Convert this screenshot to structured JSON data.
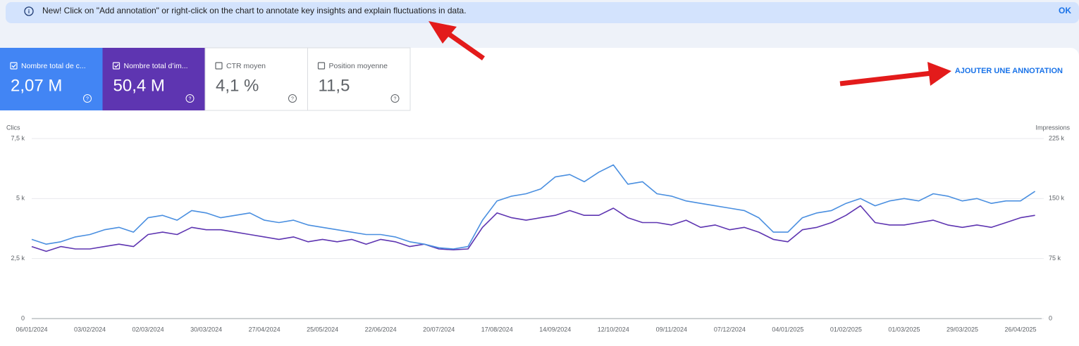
{
  "banner": {
    "text": "New! Click on \"Add annotation\" or right-click on the chart to annotate key insights and explain fluctuations in data.",
    "button": "OK"
  },
  "add_annotation": "AJOUTER UNE ANNOTATION",
  "metrics": [
    {
      "label": "CTR moyen",
      "value": "4,1 %"
    },
    {
      "label": "Position moyenne",
      "value": "11,5"
    }
  ],
  "chart_data": {
    "type": "line",
    "y_label": "Clics",
    "y2_label": "Impressions",
    "grid": true,
    "x": [
      "06/01/2024",
      "13/01/2024",
      "20/01/2024",
      "27/01/2024",
      "03/02/2024",
      "10/02/2024",
      "17/02/2024",
      "24/02/2024",
      "02/03/2024",
      "09/03/2024",
      "16/03/2024",
      "23/03/2024",
      "30/03/2024",
      "06/04/2024",
      "13/04/2024",
      "20/04/2024",
      "27/04/2024",
      "04/05/2024",
      "11/05/2024",
      "18/05/2024",
      "25/05/2024",
      "01/06/2024",
      "08/06/2024",
      "15/06/2024",
      "22/06/2024",
      "29/06/2024",
      "06/07/2024",
      "13/07/2024",
      "20/07/2024",
      "27/07/2024",
      "03/08/2024",
      "10/08/2024",
      "17/08/2024",
      "24/08/2024",
      "31/08/2024",
      "07/09/2024",
      "14/09/2024",
      "21/09/2024",
      "28/09/2024",
      "05/10/2024",
      "12/10/2024",
      "19/10/2024",
      "26/10/2024",
      "02/11/2024",
      "09/11/2024",
      "16/11/2024",
      "23/11/2024",
      "30/11/2024",
      "07/12/2024",
      "14/12/2024",
      "21/12/2024",
      "28/12/2024",
      "04/01/2025",
      "11/01/2025",
      "18/01/2025",
      "25/01/2025",
      "01/02/2025",
      "08/02/2025",
      "15/02/2025",
      "22/02/2025",
      "01/03/2025",
      "08/03/2025",
      "15/03/2025",
      "22/03/2025",
      "29/03/2025",
      "05/04/2025",
      "12/04/2025",
      "19/04/2025",
      "26/04/2025",
      "03/05/2025"
    ],
    "xticks": [
      "06/01/2024",
      "03/02/2024",
      "02/03/2024",
      "30/03/2024",
      "27/04/2024",
      "25/05/2024",
      "22/06/2024",
      "20/07/2024",
      "17/08/2024",
      "14/09/2024",
      "12/10/2024",
      "09/11/2024",
      "07/12/2024",
      "04/01/2025",
      "01/02/2025",
      "01/03/2025",
      "29/03/2025",
      "26/04/2025"
    ],
    "ylim": [
      0,
      7500
    ],
    "yticks": [
      0,
      {
        "value": 2500,
        "label": "2,5 k"
      },
      {
        "value": 5000,
        "label": "5 k"
      },
      {
        "value": 7500,
        "label": "7,5 k"
      }
    ],
    "y2lim": [
      0,
      225000
    ],
    "y2ticks": [
      0,
      {
        "value": 75000,
        "label": "75 k"
      },
      {
        "value": 150000,
        "label": "150 k"
      },
      {
        "value": 225000,
        "label": "225 k"
      }
    ],
    "series": [
      {
        "name": "Nombre total de c...",
        "total": "2,07 M",
        "color": "#4a8fe0",
        "card_color": "#4285f4",
        "values": [
          3300,
          3100,
          3200,
          3400,
          3500,
          3700,
          3800,
          3600,
          4200,
          4300,
          4100,
          4500,
          4400,
          4200,
          4300,
          4400,
          4100,
          4000,
          4100,
          3900,
          3800,
          3700,
          3600,
          3500,
          3500,
          3400,
          3200,
          3100,
          2950,
          2900,
          3000,
          4100,
          4900,
          5100,
          5200,
          5400,
          5900,
          6000,
          5700,
          6100,
          6400,
          5600,
          5700,
          5200,
          5100,
          4900,
          4800,
          4700,
          4600,
          4500,
          4200,
          3600,
          3600,
          4200,
          4400,
          4500,
          4800,
          5000,
          4700,
          4900,
          5000,
          4900,
          5200,
          5100,
          4900,
          5000,
          4800,
          4900,
          4900,
          5300
        ]
      },
      {
        "name": "Nombre total d’im...",
        "total": "50,4 M",
        "color": "#5e35b1",
        "card_color": "#5e35b1",
        "axis": "y2",
        "values": [
          90000,
          84000,
          90000,
          87000,
          87000,
          90000,
          93000,
          90000,
          105000,
          108000,
          105000,
          114000,
          111000,
          111000,
          108000,
          105000,
          102000,
          99000,
          102000,
          96000,
          99000,
          96000,
          99000,
          93000,
          99000,
          96000,
          90000,
          93000,
          87000,
          86000,
          87000,
          114000,
          132000,
          126000,
          123000,
          126000,
          129000,
          135000,
          129000,
          129000,
          138000,
          126000,
          120000,
          120000,
          117000,
          123000,
          114000,
          117000,
          111000,
          114000,
          108000,
          99000,
          96000,
          111000,
          114000,
          120000,
          129000,
          141000,
          120000,
          117000,
          117000,
          120000,
          123000,
          117000,
          114000,
          117000,
          114000,
          120000,
          126000,
          129000
        ]
      }
    ]
  }
}
